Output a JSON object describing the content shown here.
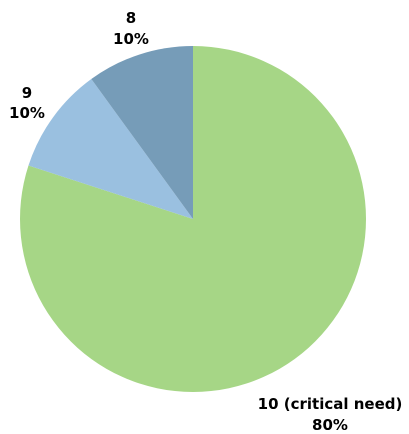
{
  "chart_data": {
    "type": "pie",
    "title": "",
    "start_angle_deg": 0,
    "direction": "clockwise",
    "legend": "none",
    "slices": [
      {
        "label": "10 (critical need)",
        "value": 80,
        "display": "80%",
        "color": "#a6d686"
      },
      {
        "label": "9",
        "value": 10,
        "display": "10%",
        "color": "#9ac0e0"
      },
      {
        "label": "8",
        "value": 10,
        "display": "10%",
        "color": "#769cb8"
      }
    ]
  }
}
